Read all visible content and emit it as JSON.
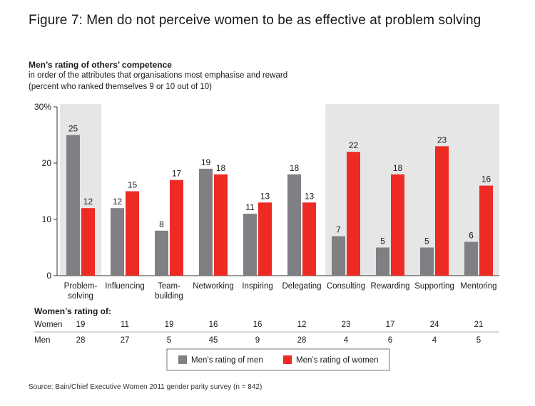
{
  "title": "Figure 7: Men do not perceive women to be as effective at problem solving",
  "subtitle_bold": "Men’s rating of others’ competence",
  "subtitle_line1": "in order of the attributes that organisations most emphasise and reward",
  "subtitle_line2": "(percent who ranked themselves 9 or 10 out of 10)",
  "source": "Source: Bain/Chief Executive Women 2011 gender parity survey (n = 842)",
  "colors": {
    "men": "#7f7f84",
    "women": "#ee2a24",
    "shade": "#e6e6e6"
  },
  "chart_data": {
    "type": "bar",
    "categories": [
      "Problem-solving",
      "Influencing",
      "Team-building",
      "Networking",
      "Inspiring",
      "Delegating",
      "Consulting",
      "Rewarding",
      "Supporting",
      "Mentoring"
    ],
    "category_lines": [
      [
        "Problem-",
        "solving"
      ],
      [
        "Influencing"
      ],
      [
        "Team-",
        "building"
      ],
      [
        "Networking"
      ],
      [
        "Inspiring"
      ],
      [
        "Delegating"
      ],
      [
        "Consulting"
      ],
      [
        "Rewarding"
      ],
      [
        "Supporting"
      ],
      [
        "Mentoring"
      ]
    ],
    "series": [
      {
        "name": "Men’s rating of men",
        "values": [
          25,
          12,
          8,
          19,
          11,
          18,
          7,
          5,
          5,
          6
        ]
      },
      {
        "name": "Men’s rating of women",
        "values": [
          12,
          15,
          17,
          18,
          13,
          13,
          22,
          18,
          23,
          16
        ]
      }
    ],
    "y_ticks": [
      "0",
      "10",
      "20",
      "30%"
    ],
    "ylim": [
      0,
      30
    ],
    "shaded_categories": [
      0,
      6,
      7,
      8,
      9
    ],
    "legend_position": "bottom-center"
  },
  "womens_rating": {
    "heading": "Women’s rating of:",
    "rows": [
      {
        "label": "Women",
        "values": [
          19,
          11,
          19,
          16,
          16,
          12,
          23,
          17,
          24,
          21
        ]
      },
      {
        "label": "Men",
        "values": [
          28,
          27,
          5,
          45,
          9,
          28,
          4,
          6,
          4,
          5
        ]
      }
    ]
  }
}
